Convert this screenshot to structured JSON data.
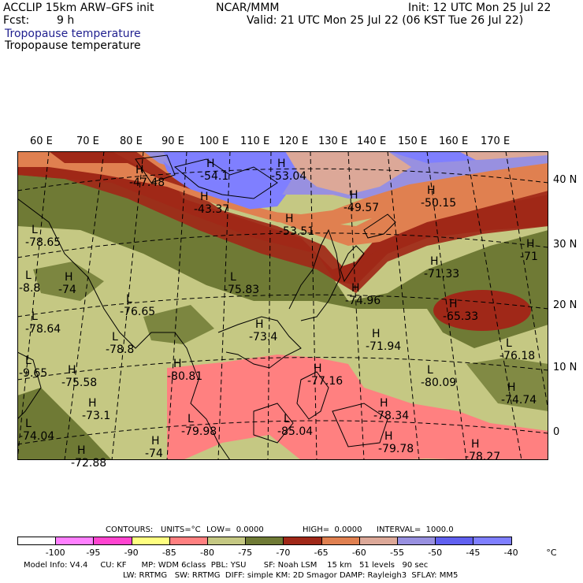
{
  "header": {
    "model": "ACCLIP 15km ARW–GFS init",
    "org": "NCAR/MMM",
    "init": "Init: 12 UTC Mon 25 Jul 22",
    "fcst_label": "Fcst:",
    "fcst_value": "9 h",
    "valid": "Valid: 21 UTC Mon 25 Jul 22 (06 KST Tue 26 Jul 22)",
    "field1": "Tropopause temperature",
    "field2": "Tropopause temperature"
  },
  "lon_labels": [
    "60 E",
    "70 E",
    "80 E",
    "90 E",
    "100 E",
    "110 E",
    "120 E",
    "130 E",
    "140 E",
    "150 E",
    "160 E",
    "170 E"
  ],
  "lat_labels": [
    "40 N",
    "30 N",
    "20 N",
    "10 N",
    "0"
  ],
  "map_labels": [
    {
      "k": "H",
      "v": "-47.48"
    },
    {
      "k": "H",
      "v": "-54.1"
    },
    {
      "k": "H",
      "v": "-53.04"
    },
    {
      "k": "H",
      "v": "-43.37"
    },
    {
      "k": "H",
      "v": "-53.51"
    },
    {
      "k": "H",
      "v": "-49.57"
    },
    {
      "k": "H",
      "v": "-50.15"
    },
    {
      "k": "L",
      "v": "-78.65"
    },
    {
      "k": "H",
      "v": "-74"
    },
    {
      "k": "L",
      "v": "-75.83"
    },
    {
      "k": "H",
      "v": "-71.33"
    },
    {
      "k": "H",
      "v": "-71"
    },
    {
      "k": "L",
      "v": "-76.65"
    },
    {
      "k": "H",
      "v": "-74.96"
    },
    {
      "k": "H",
      "v": "-65.33"
    },
    {
      "k": "L",
      "v": "-78.64"
    },
    {
      "k": "H",
      "v": "-73.4"
    },
    {
      "k": "H",
      "v": "-71.94"
    },
    {
      "k": "L",
      "v": "-78.8"
    },
    {
      "k": "L",
      "v": "-76.18"
    },
    {
      "k": "H",
      "v": "-80.81"
    },
    {
      "k": "H",
      "v": "-77.16"
    },
    {
      "k": "L",
      "v": "-80.09"
    },
    {
      "k": "H",
      "v": "-75.58"
    },
    {
      "k": "H",
      "v": "-74.74"
    },
    {
      "k": "H",
      "v": "-73.1"
    },
    {
      "k": "H",
      "v": "-78.34"
    },
    {
      "k": "L",
      "v": "-79.98"
    },
    {
      "k": "L",
      "v": "-85.04"
    },
    {
      "k": "H",
      "v": "-74"
    },
    {
      "k": "H",
      "v": "-79.78"
    },
    {
      "k": "H",
      "v": "-78.27"
    },
    {
      "k": "L",
      "v": "-74.04"
    },
    {
      "k": "H",
      "v": "-72.88"
    },
    {
      "k": "L",
      "v": "-8.8"
    },
    {
      "k": "L",
      "v": "-9.65"
    }
  ],
  "contour_info": {
    "contours": "CONTOURS:",
    "units": "UNITS=°C",
    "low": "LOW=  0.0000",
    "high": "HIGH=  0.0000",
    "interval": "INTERVAL=  1000.0"
  },
  "colorbar": {
    "unit": "°C",
    "ticks": [
      "-100",
      "-95",
      "-90",
      "-85",
      "-80",
      "-75",
      "-70",
      "-65",
      "-60",
      "-55",
      "-50",
      "-45",
      "-40"
    ],
    "colors": [
      "#ffffff",
      "#ff80ff",
      "#ff44d0",
      "#ffff80",
      "#ff8080",
      "#c5c883",
      "#6f7a35",
      "#a02818",
      "#e08050",
      "#dca898",
      "#9890e0",
      "#6060f0",
      "#7f7fff"
    ]
  },
  "model_info": {
    "line1": "Model Info: V4.4     CU: KF      MP: WDM 6class  PBL: YSU       SF: Noah LSM    15 km   51 levels   90 sec",
    "line2": "LW: RRTMG   SW: RRTMG  DIFF: simple KM: 2D Smagor DAMP: Rayleigh3  SFLAY: MM5"
  }
}
